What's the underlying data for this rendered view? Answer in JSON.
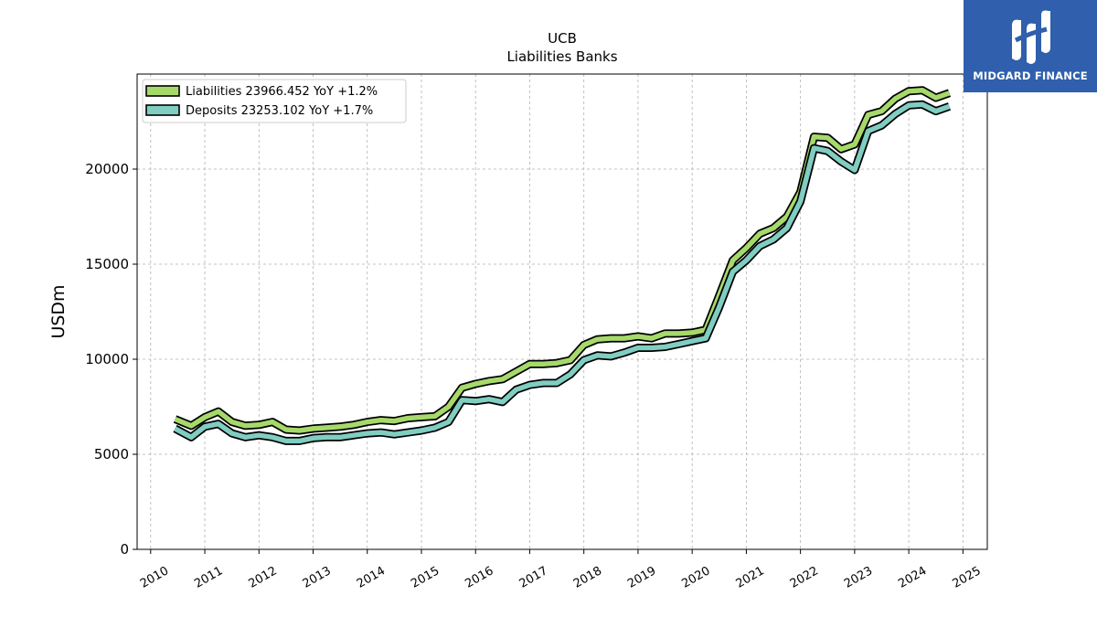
{
  "logo": {
    "text": "MIDGARD FINANCE",
    "bg_color": "#2f5fad"
  },
  "chart_data": {
    "type": "line",
    "title": "UCB",
    "subtitle": "Liabilities Banks",
    "xlabel": "",
    "ylabel": "USDm",
    "xlim": [
      2009.75,
      2025.45
    ],
    "ylim": [
      0,
      25000
    ],
    "yticks": [
      0,
      5000,
      10000,
      15000,
      20000
    ],
    "xticks": [
      2010,
      2011,
      2012,
      2013,
      2014,
      2015,
      2016,
      2017,
      2018,
      2019,
      2020,
      2021,
      2022,
      2023,
      2024,
      2025
    ],
    "grid": true,
    "legend_position": "top-left",
    "x": [
      2010.45,
      2010.75,
      2011.0,
      2011.25,
      2011.5,
      2011.75,
      2012.0,
      2012.25,
      2012.5,
      2012.75,
      2013.0,
      2013.25,
      2013.5,
      2013.75,
      2014.0,
      2014.25,
      2014.5,
      2014.75,
      2015.0,
      2015.25,
      2015.5,
      2015.75,
      2016.0,
      2016.25,
      2016.5,
      2016.75,
      2017.0,
      2017.25,
      2017.5,
      2017.75,
      2018.0,
      2018.25,
      2018.5,
      2018.75,
      2019.0,
      2019.25,
      2019.5,
      2019.75,
      2020.0,
      2020.25,
      2020.5,
      2020.75,
      2021.0,
      2021.25,
      2021.5,
      2021.75,
      2022.0,
      2022.25,
      2022.5,
      2022.75,
      2023.0,
      2023.25,
      2023.5,
      2023.75,
      2024.0,
      2024.25,
      2024.5,
      2024.75
    ],
    "series": [
      {
        "name": "Liabilities  23966.452 YoY +1.2%",
        "color": "#a6d96a",
        "values": [
          6850,
          6500,
          6950,
          7250,
          6700,
          6500,
          6550,
          6700,
          6300,
          6250,
          6350,
          6400,
          6450,
          6550,
          6700,
          6800,
          6750,
          6900,
          6950,
          7000,
          7500,
          8500,
          8700,
          8850,
          8950,
          9350,
          9750,
          9750,
          9800,
          9950,
          10750,
          11050,
          11100,
          11100,
          11200,
          11100,
          11350,
          11350,
          11400,
          11550,
          13350,
          15200,
          15850,
          16600,
          16900,
          17500,
          18800,
          21700,
          21650,
          21050,
          21300,
          22850,
          23050,
          23700,
          24100,
          24150,
          23750,
          24000
        ]
      },
      {
        "name": "Deposits  23253.102 YoY +1.7%",
        "color": "#80cdc1",
        "values": [
          6350,
          5900,
          6450,
          6600,
          6100,
          5900,
          6000,
          5900,
          5700,
          5700,
          5850,
          5900,
          5900,
          6000,
          6100,
          6150,
          6050,
          6150,
          6250,
          6400,
          6700,
          7850,
          7800,
          7900,
          7750,
          8400,
          8650,
          8750,
          8750,
          9200,
          9950,
          10200,
          10150,
          10350,
          10600,
          10600,
          10650,
          10800,
          10950,
          11100,
          12750,
          14600,
          15200,
          15950,
          16300,
          16900,
          18300,
          21100,
          20950,
          20400,
          19950,
          22000,
          22300,
          22900,
          23350,
          23400,
          23050,
          23300
        ]
      }
    ]
  }
}
